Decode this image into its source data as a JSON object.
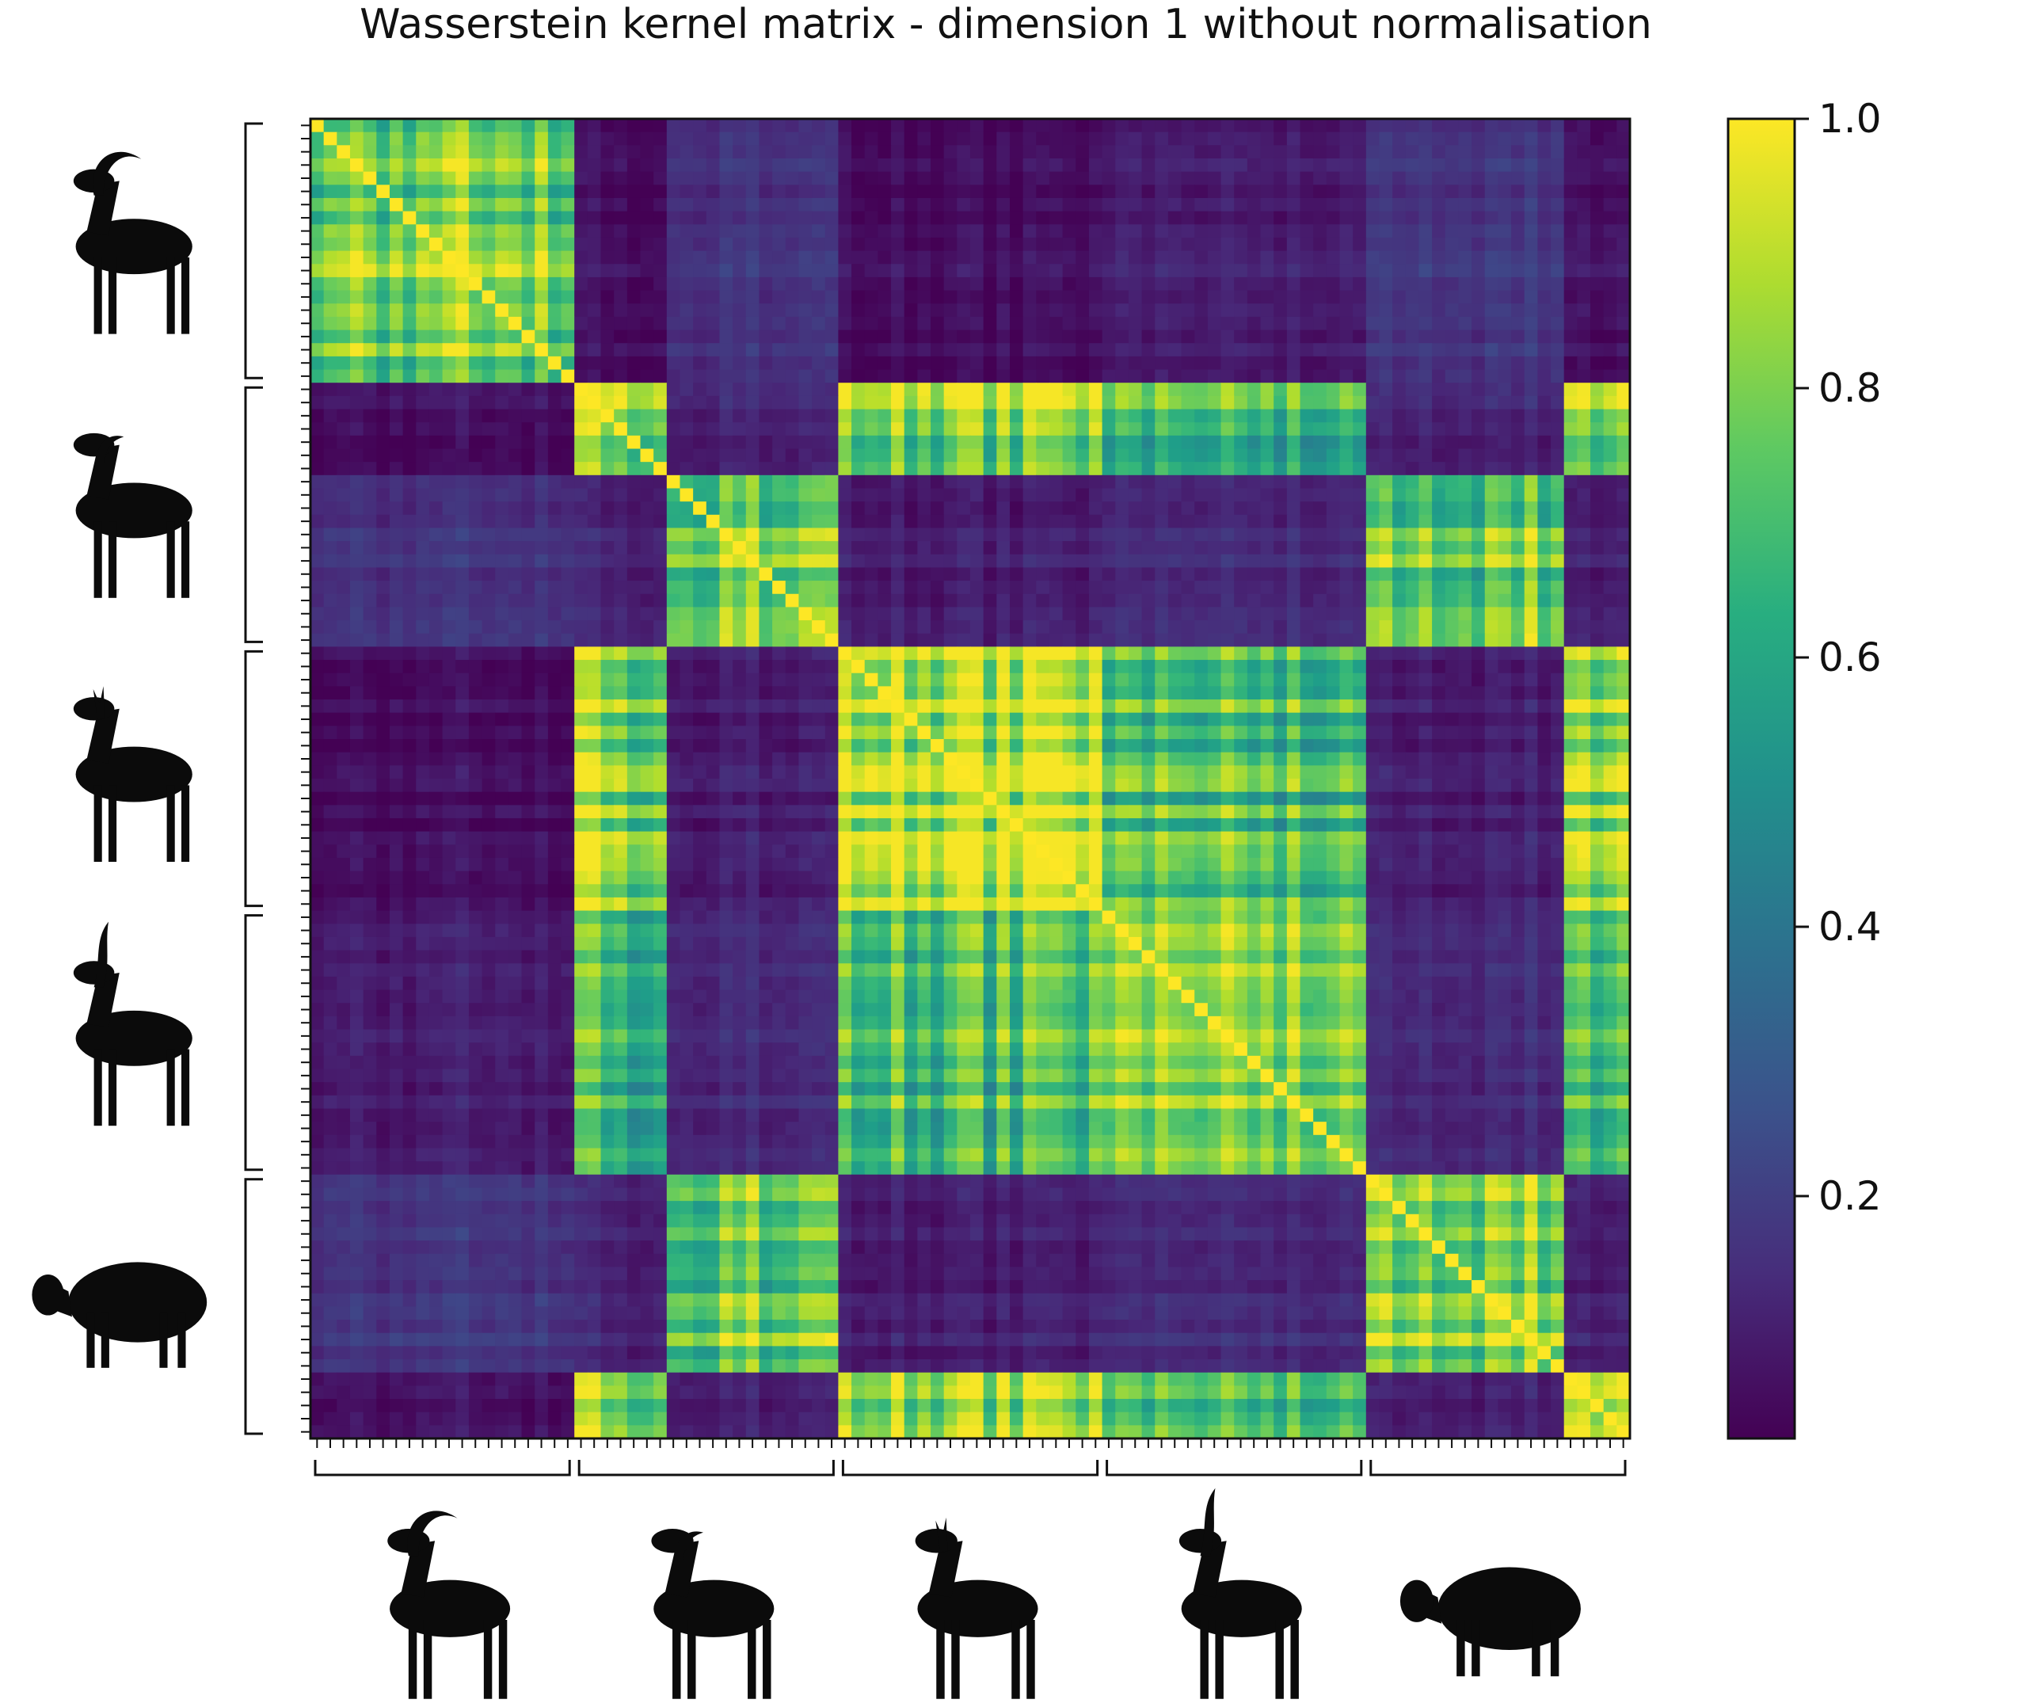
{
  "chart_data": {
    "type": "heatmap",
    "title": "Wasserstein kernel matrix - dimension 1 without normalisation",
    "xlabel": "",
    "ylabel": "",
    "colormap": "viridis",
    "n": 100,
    "groups": [
      {
        "animal": "ibex-icon",
        "size": 20
      },
      {
        "animal": "goat-icon",
        "size": 20
      },
      {
        "animal": "roe-deer-icon",
        "size": 20
      },
      {
        "animal": "blackbuck-icon",
        "size": 20
      },
      {
        "animal": "sheep-icon",
        "size": 20
      }
    ],
    "subgroups": [
      {
        "group": 0,
        "start": 0,
        "end": 20
      },
      {
        "group": 1,
        "start": 20,
        "end": 27
      },
      {
        "group": 2,
        "start": 27,
        "end": 40
      },
      {
        "group": 3,
        "start": 40,
        "end": 60
      },
      {
        "group": 4,
        "start": 60,
        "end": 80
      },
      {
        "group": 5,
        "start": 80,
        "end": 95
      },
      {
        "group": 6,
        "start": 95,
        "end": 100
      }
    ],
    "block_values": [
      [
        0.82,
        0.06,
        0.17,
        0.05,
        0.1,
        0.18,
        0.06
      ],
      [
        0.06,
        0.85,
        0.12,
        0.82,
        0.68,
        0.12,
        0.78
      ],
      [
        0.17,
        0.12,
        0.83,
        0.1,
        0.14,
        0.8,
        0.1
      ],
      [
        0.05,
        0.82,
        0.1,
        0.9,
        0.7,
        0.1,
        0.8
      ],
      [
        0.1,
        0.68,
        0.14,
        0.7,
        0.83,
        0.14,
        0.68
      ],
      [
        0.18,
        0.12,
        0.8,
        0.1,
        0.14,
        0.85,
        0.1
      ],
      [
        0.06,
        0.78,
        0.1,
        0.8,
        0.68,
        0.1,
        0.85
      ]
    ],
    "diagonal": 1.0,
    "colorbar": {
      "min": 0.02,
      "max": 1.0,
      "ticks": [
        0.2,
        0.4,
        0.6,
        0.8,
        1.0
      ],
      "tick_labels": [
        "0.2",
        "0.4",
        "0.6",
        "0.8",
        "1.0"
      ]
    }
  }
}
